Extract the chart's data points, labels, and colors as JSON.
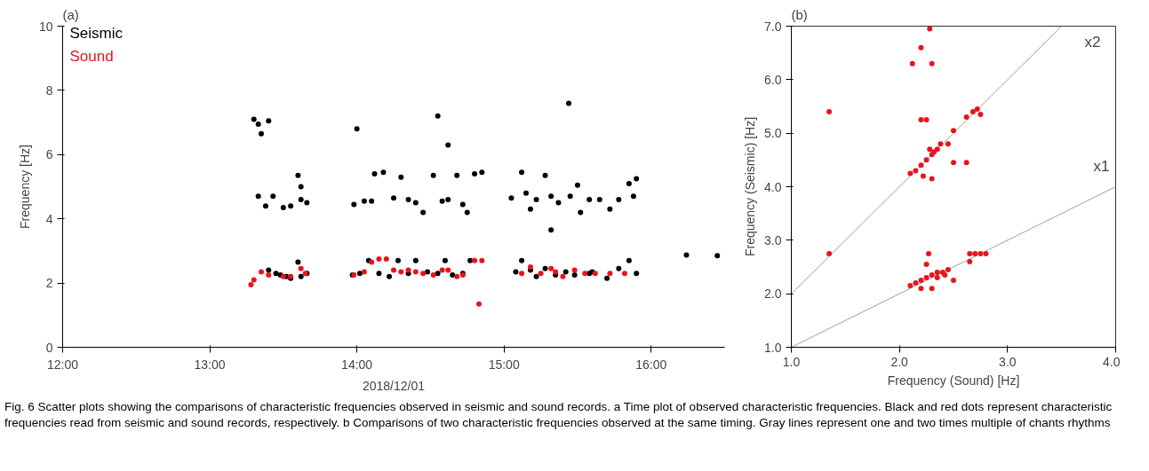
{
  "chart_data": [
    {
      "type": "scatter",
      "title": "(a)",
      "xlabel": "2018/12/01",
      "ylabel": "Frequency [Hz]",
      "xlim": [
        12,
        16.5
      ],
      "ylim": [
        0,
        10
      ],
      "xticks": [
        {
          "value": 12,
          "label": "12:00"
        },
        {
          "value": 13,
          "label": "13:00"
        },
        {
          "value": 14,
          "label": "14:00"
        },
        {
          "value": 15,
          "label": "15:00"
        },
        {
          "value": 16,
          "label": "16:00"
        }
      ],
      "yticks": [
        0,
        2,
        4,
        6,
        8,
        10
      ],
      "marker": "circle",
      "grid": false,
      "annotations": [
        "Fig. 6  Scatter plots showing the comparisons of characteristic frequencies observed in seismic and sound records. a Time plot of observed characteristic frequencies. Black and red dots represent characteristic frequencies read from seismic and sound records, respectively. b Comparisons of two characteristic frequencies observed at the same timing. Gray lines represent one and two times multiple of chants rhythms"
      ],
      "series": [
        {
          "name": "Seismic",
          "color": "#000000",
          "x": [
            13.3,
            13.33,
            13.35,
            13.4,
            13.33,
            13.38,
            13.43,
            13.5,
            13.55,
            13.6,
            13.62,
            13.62,
            13.66,
            14.0,
            13.98,
            14.05,
            14.1,
            14.12,
            14.18,
            14.25,
            14.3,
            14.35,
            14.4,
            14.45,
            14.52,
            14.55,
            14.58,
            14.62,
            14.62,
            14.68,
            14.72,
            14.75,
            14.8,
            14.85,
            15.05,
            15.12,
            15.15,
            15.18,
            15.22,
            15.28,
            15.32,
            15.37,
            15.32,
            15.45,
            15.44,
            15.5,
            15.52,
            15.58,
            15.65,
            15.72,
            15.78,
            15.85,
            15.88,
            15.9,
            13.4,
            13.45,
            13.48,
            13.52,
            13.55,
            13.6,
            13.62,
            13.66,
            13.97,
            14.02,
            14.08,
            14.15,
            14.22,
            14.28,
            14.35,
            14.4,
            14.48,
            14.55,
            14.6,
            14.65,
            14.72,
            14.77,
            15.08,
            15.12,
            15.18,
            15.22,
            15.28,
            15.35,
            15.42,
            15.48,
            15.58,
            15.6,
            15.7,
            15.78,
            15.85,
            15.9,
            16.24,
            16.45
          ],
          "values": [
            7.1,
            6.95,
            6.65,
            7.05,
            4.7,
            4.4,
            4.7,
            4.35,
            4.4,
            5.35,
            5.0,
            4.6,
            4.5,
            6.8,
            4.45,
            4.55,
            4.55,
            5.4,
            5.45,
            4.65,
            5.3,
            4.6,
            4.5,
            4.2,
            5.35,
            7.2,
            4.55,
            4.6,
            6.3,
            5.35,
            4.45,
            4.2,
            5.4,
            5.45,
            4.65,
            5.45,
            4.8,
            4.3,
            4.6,
            5.35,
            4.7,
            4.5,
            3.65,
            4.7,
            7.6,
            5.05,
            4.2,
            4.6,
            4.6,
            4.3,
            4.6,
            5.1,
            4.7,
            5.25,
            2.4,
            2.3,
            2.25,
            2.2,
            2.15,
            2.65,
            2.2,
            2.3,
            2.25,
            2.3,
            2.7,
            2.3,
            2.2,
            2.7,
            2.3,
            2.7,
            2.35,
            2.3,
            2.7,
            2.25,
            2.3,
            2.7,
            2.35,
            2.7,
            2.4,
            2.2,
            2.45,
            2.25,
            2.35,
            2.25,
            2.3,
            2.35,
            2.15,
            2.45,
            2.7,
            2.3,
            2.87,
            2.85
          ]
        },
        {
          "name": "Sound",
          "color": "#e8141c",
          "x": [
            13.28,
            13.3,
            13.35,
            13.4,
            13.5,
            13.55,
            13.62,
            13.65,
            13.98,
            14.05,
            14.1,
            14.15,
            14.2,
            14.25,
            14.3,
            14.35,
            14.4,
            14.45,
            14.52,
            14.58,
            14.62,
            14.68,
            14.72,
            14.8,
            14.83,
            14.85,
            15.12,
            15.18,
            15.25,
            15.32,
            15.35,
            15.4,
            15.48,
            15.55,
            15.62,
            15.72,
            15.82
          ],
          "values": [
            1.95,
            2.1,
            2.35,
            2.25,
            2.2,
            2.2,
            2.45,
            2.3,
            2.25,
            2.35,
            2.65,
            2.75,
            2.75,
            2.4,
            2.35,
            2.4,
            2.35,
            2.3,
            2.25,
            2.4,
            2.4,
            2.2,
            2.25,
            2.7,
            1.35,
            2.7,
            2.3,
            2.5,
            2.3,
            2.45,
            2.35,
            2.2,
            2.4,
            2.3,
            2.3,
            2.3,
            2.3
          ]
        }
      ]
    },
    {
      "type": "scatter",
      "title": "(b)",
      "xlabel": "Frequency (Sound) [Hz]",
      "ylabel": "Frequency (Seismic) [Hz]",
      "xlim": [
        1,
        4
      ],
      "ylim": [
        1,
        7
      ],
      "xticks": [
        {
          "value": 1,
          "label": "1.0"
        },
        {
          "value": 2,
          "label": "2.0"
        },
        {
          "value": 3,
          "label": "3.0"
        },
        {
          "value": 4,
          "label": "4.0"
        }
      ],
      "yticks": [
        {
          "value": 1,
          "label": "1.0"
        },
        {
          "value": 2,
          "label": "2.0"
        },
        {
          "value": 3,
          "label": "3.0"
        },
        {
          "value": 4,
          "label": "4.0"
        },
        {
          "value": 5,
          "label": "5.0"
        },
        {
          "value": 6,
          "label": "6.0"
        },
        {
          "value": 7,
          "label": "7.0"
        }
      ],
      "marker": "circle",
      "grid": false,
      "annotations": [
        "x2",
        "x1"
      ],
      "series": [
        {
          "type": "line",
          "marker": "none",
          "color": "#a0a0a0",
          "x": [
            1,
            4
          ],
          "values": [
            1,
            4
          ]
        },
        {
          "type": "line",
          "marker": "none",
          "color": "#a0a0a0",
          "x": [
            1,
            3.5
          ],
          "values": [
            2,
            7
          ]
        },
        {
          "color": "#e8141c",
          "x": [
            2.1,
            2.15,
            2.2,
            2.25,
            2.3,
            2.28,
            2.32,
            2.35,
            2.38,
            2.22,
            2.3,
            2.45,
            2.5,
            2.62,
            2.68,
            2.72,
            2.75,
            2.5,
            2.62,
            2.2,
            2.25,
            2.12,
            2.2,
            2.3,
            2.28,
            1.35,
            1.35,
            2.1,
            2.15,
            2.2,
            2.25,
            2.3,
            2.35,
            2.4,
            2.45,
            2.2,
            2.3,
            2.25,
            2.27,
            2.5,
            2.65,
            2.7,
            2.75,
            2.8,
            2.65,
            2.35,
            2.42
          ],
          "values": [
            4.25,
            4.3,
            4.4,
            4.5,
            4.6,
            4.7,
            4.65,
            4.7,
            4.8,
            4.2,
            4.15,
            4.8,
            5.05,
            5.3,
            5.4,
            5.45,
            5.35,
            4.45,
            4.45,
            5.25,
            5.25,
            6.3,
            6.6,
            6.3,
            6.95,
            5.4,
            2.75,
            2.15,
            2.2,
            2.25,
            2.3,
            2.35,
            2.4,
            2.4,
            2.45,
            2.1,
            2.1,
            2.55,
            2.75,
            2.25,
            2.75,
            2.75,
            2.75,
            2.75,
            2.6,
            2.3,
            2.35
          ]
        }
      ]
    }
  ]
}
